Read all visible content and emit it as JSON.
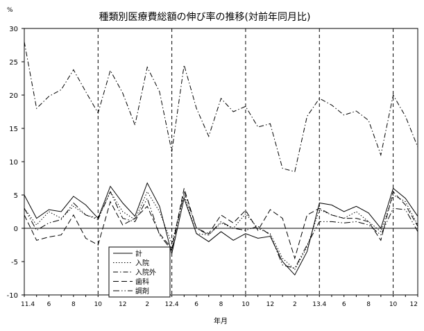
{
  "chart_data": {
    "type": "line",
    "title": "種類別医療費総額の伸び率の推移(対前年同月比)",
    "unit_label": "%",
    "xlabel": "年月",
    "ylabel": "",
    "ylim": [
      -10,
      30
    ],
    "yticks": [
      -10,
      -5,
      0,
      5,
      10,
      15,
      20,
      25,
      30
    ],
    "grid": false,
    "legend_position": "bottom-left",
    "x": [
      "11.4",
      "11.5",
      "11.6",
      "11.7",
      "11.8",
      "11.9",
      "11.10",
      "11.11",
      "11.12",
      "12.1",
      "12.2",
      "12.3",
      "12.4",
      "12.5",
      "12.6",
      "12.7",
      "12.8",
      "12.9",
      "12.10",
      "12.11",
      "12.12",
      "13.1",
      "13.2",
      "13.3",
      "13.4",
      "13.5",
      "13.6",
      "13.7",
      "13.8",
      "13.9",
      "13.10",
      "13.11",
      "13.12"
    ],
    "xtick_labels": [
      {
        "index": 0,
        "label": "11.4"
      },
      {
        "index": 2,
        "label": "6"
      },
      {
        "index": 4,
        "label": "8"
      },
      {
        "index": 6,
        "label": "10"
      },
      {
        "index": 8,
        "label": "12"
      },
      {
        "index": 10,
        "label": "2"
      },
      {
        "index": 12,
        "label": "12.4"
      },
      {
        "index": 14,
        "label": "6"
      },
      {
        "index": 16,
        "label": "8"
      },
      {
        "index": 18,
        "label": "10"
      },
      {
        "index": 20,
        "label": "12"
      },
      {
        "index": 22,
        "label": "2"
      },
      {
        "index": 24,
        "label": "13.4"
      },
      {
        "index": 26,
        "label": "6"
      },
      {
        "index": 28,
        "label": "8"
      },
      {
        "index": 30,
        "label": "10"
      },
      {
        "index": 32,
        "label": "12"
      }
    ],
    "annual_divider_indices": [
      6,
      12,
      18,
      24,
      30
    ],
    "series": [
      {
        "name": "計",
        "color": "#000000",
        "dash": "none",
        "values": [
          5.0,
          1.5,
          2.8,
          2.5,
          4.8,
          3.5,
          1.5,
          6.3,
          3.8,
          1.8,
          6.8,
          3.3,
          -3.8,
          4.5,
          -0.8,
          -2.0,
          -0.5,
          -1.8,
          -0.8,
          -1.5,
          -1.2,
          -5.0,
          -7.0,
          -3.5,
          3.8,
          3.5,
          2.5,
          3.3,
          2.3,
          0.0,
          6.0,
          4.5,
          1.8
        ]
      },
      {
        "name": "入院",
        "color": "#000000",
        "dash": "1.5,2.5",
        "values": [
          3.0,
          0.5,
          2.5,
          1.5,
          3.3,
          2.0,
          1.5,
          5.5,
          2.5,
          1.3,
          5.5,
          2.5,
          -2.3,
          5.0,
          -0.8,
          -1.0,
          0.8,
          0.0,
          2.2,
          0.0,
          -0.8,
          -4.5,
          -6.2,
          -2.8,
          2.8,
          2.0,
          1.5,
          2.5,
          1.0,
          -0.5,
          5.0,
          4.0,
          0.5
        ]
      },
      {
        "name": "入院外",
        "color": "#000000",
        "dash": "7,3,1.5,3",
        "values": [
          28.0,
          18.0,
          19.8,
          20.8,
          23.8,
          20.5,
          17.3,
          23.7,
          20.3,
          15.5,
          24.2,
          20.5,
          11.5,
          24.5,
          18.0,
          13.8,
          19.5,
          17.5,
          18.3,
          15.2,
          15.7,
          9.0,
          8.5,
          16.8,
          19.5,
          18.5,
          17.0,
          17.6,
          16.2,
          11.0,
          20.0,
          16.8,
          12.2
        ]
      },
      {
        "name": "歯科",
        "color": "#000000",
        "dash": "8,4",
        "values": [
          2.0,
          -1.8,
          -1.3,
          -1.0,
          2.0,
          -1.5,
          -2.5,
          4.0,
          0.5,
          1.5,
          3.3,
          -0.8,
          -3.0,
          6.0,
          0.0,
          -0.8,
          2.0,
          0.8,
          2.7,
          -0.3,
          2.8,
          1.5,
          -4.5,
          2.0,
          3.0,
          2.0,
          1.5,
          1.5,
          1.0,
          -1.8,
          5.5,
          3.5,
          0.3
        ]
      },
      {
        "name": "調剤",
        "color": "#000000",
        "dash": "9,3,1.5,3,1.5,3",
        "values": [
          3.0,
          -0.3,
          0.8,
          1.3,
          3.8,
          2.0,
          1.3,
          5.5,
          1.5,
          1.0,
          4.5,
          -1.0,
          -3.3,
          5.5,
          0.0,
          -1.0,
          1.0,
          0.0,
          -0.3,
          0.3,
          -1.0,
          -5.5,
          -6.0,
          -2.5,
          1.0,
          1.0,
          0.8,
          1.0,
          0.5,
          -1.0,
          3.0,
          2.8,
          -0.5
        ]
      }
    ]
  }
}
